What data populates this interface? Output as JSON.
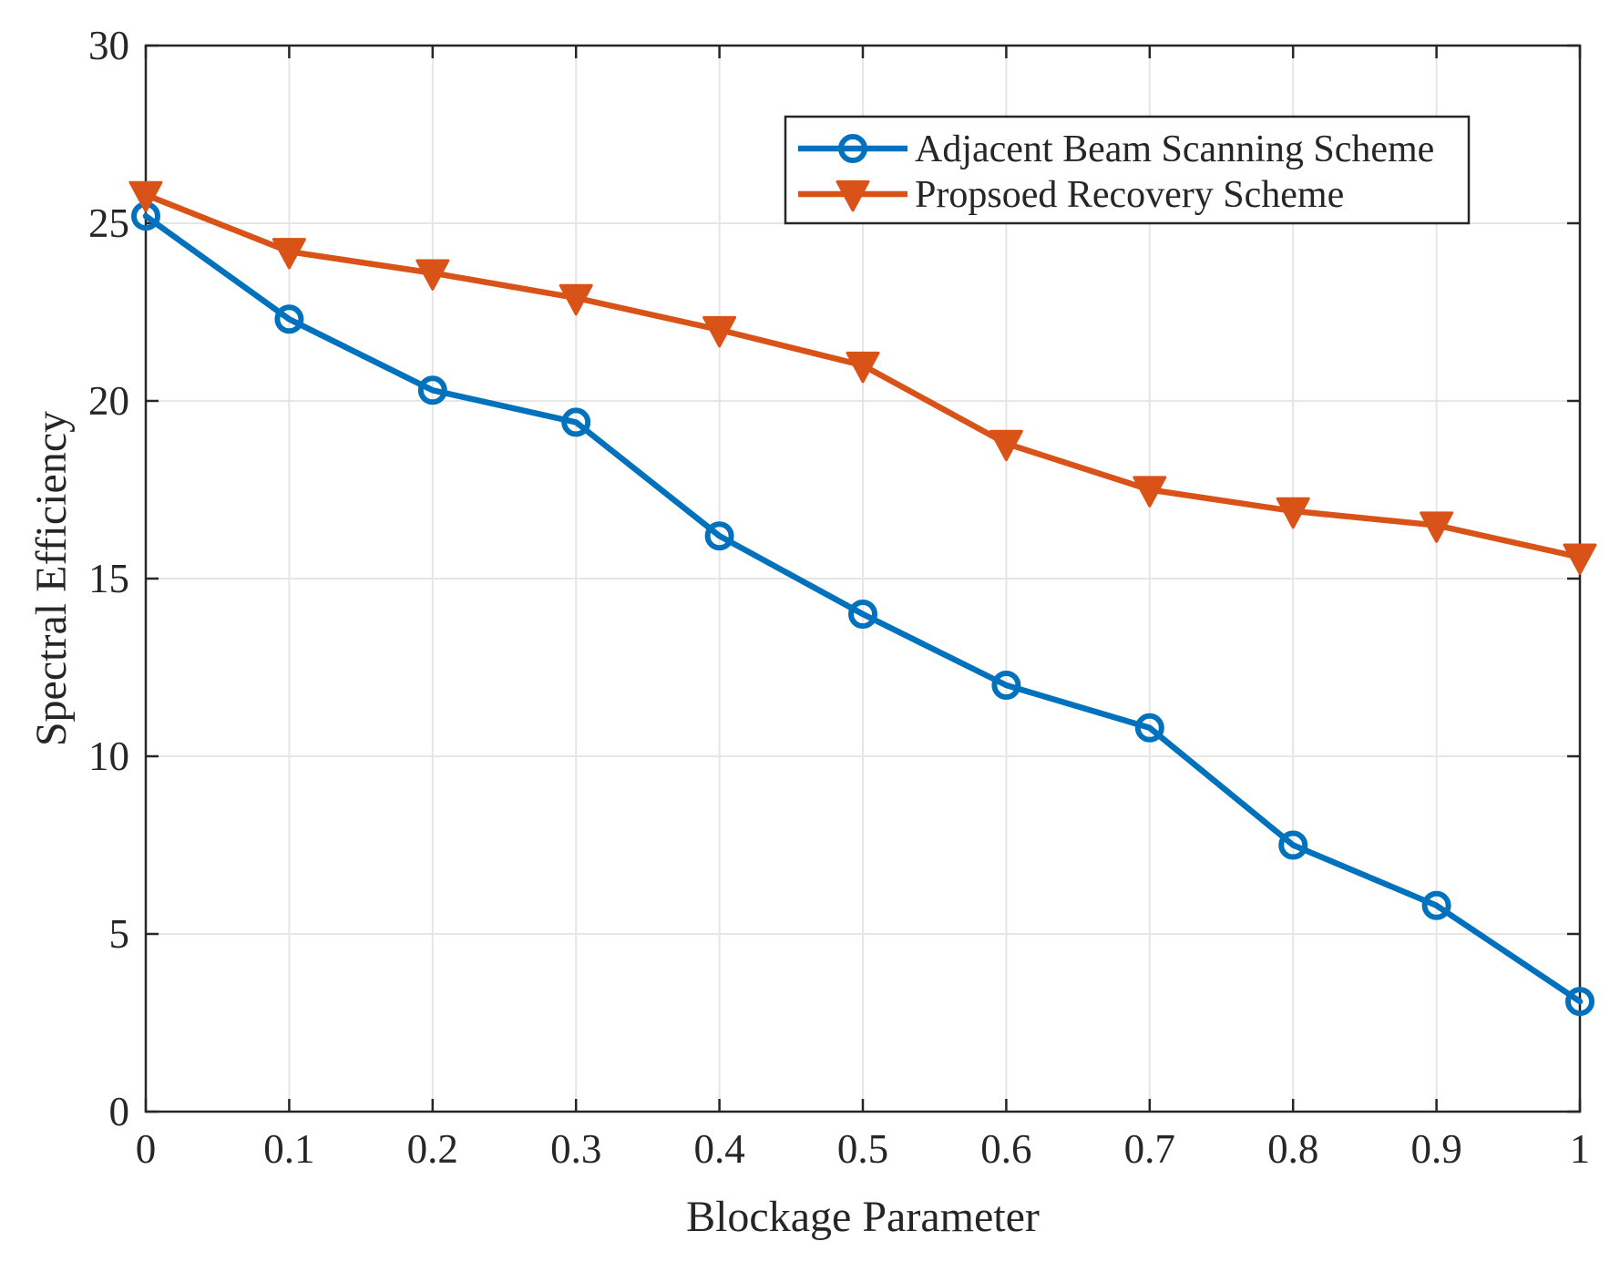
{
  "chart_data": {
    "type": "line",
    "title": "",
    "xlabel": "Blockage Parameter",
    "ylabel": "Spectral Efficiency",
    "x": [
      0,
      0.1,
      0.2,
      0.3,
      0.4,
      0.5,
      0.6,
      0.7,
      0.8,
      0.9,
      1
    ],
    "xlim": [
      0,
      1
    ],
    "ylim": [
      0,
      30
    ],
    "xticks": [
      0,
      0.1,
      0.2,
      0.3,
      0.4,
      0.5,
      0.6,
      0.7,
      0.8,
      0.9,
      1
    ],
    "xtick_labels": [
      "0",
      "0.1",
      "0.2",
      "0.3",
      "0.4",
      "0.5",
      "0.6",
      "0.7",
      "0.8",
      "0.9",
      "1"
    ],
    "yticks": [
      0,
      5,
      10,
      15,
      20,
      25,
      30
    ],
    "ytick_labels": [
      "0",
      "5",
      "10",
      "15",
      "20",
      "25",
      "30"
    ],
    "grid": true,
    "legend_position": "top-right",
    "series": [
      {
        "name": "Adjacent Beam Scanning Scheme",
        "color": "#0072BD",
        "marker": "circle",
        "values": [
          25.2,
          22.3,
          20.3,
          19.4,
          16.2,
          14.0,
          12.0,
          10.8,
          7.5,
          5.8,
          3.1
        ]
      },
      {
        "name": "Propsoed Recovery Scheme",
        "color": "#D95319",
        "marker": "triangle-down",
        "values": [
          25.8,
          24.2,
          23.6,
          22.9,
          22.0,
          21.0,
          18.8,
          17.5,
          16.9,
          16.5,
          15.6
        ]
      }
    ]
  }
}
